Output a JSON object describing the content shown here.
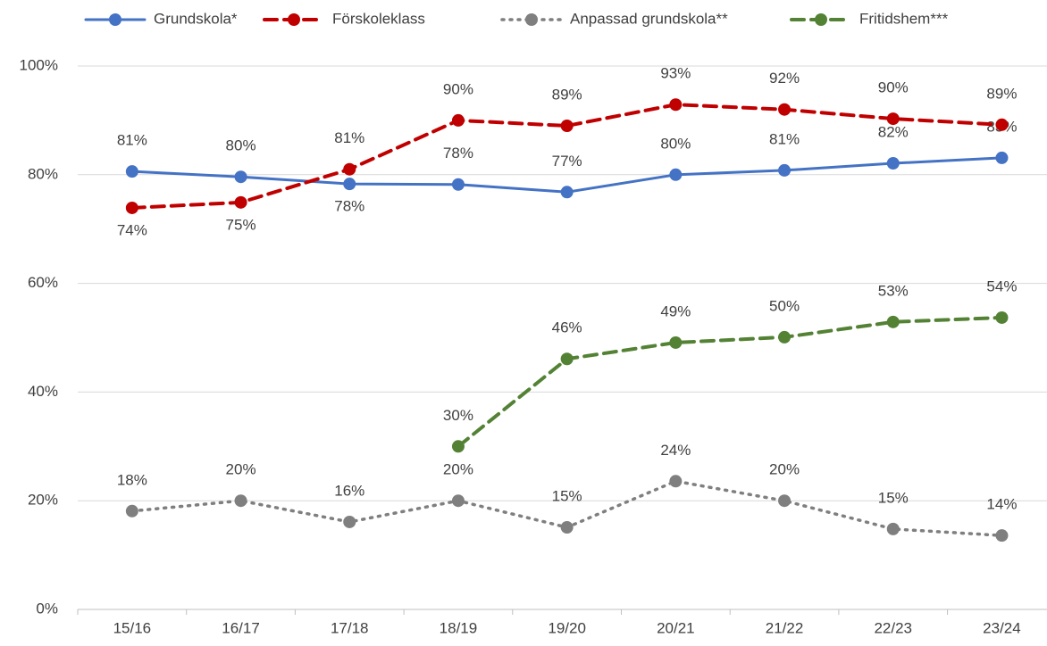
{
  "chart_data": {
    "type": "line",
    "categories": [
      "15/16",
      "16/17",
      "17/18",
      "18/19",
      "19/20",
      "20/21",
      "21/22",
      "22/23",
      "23/24"
    ],
    "series": [
      {
        "name": "Grundskola*",
        "color": "#4472c4",
        "dash": "solid",
        "values": [
          80.6,
          79.6,
          78.3,
          78.2,
          76.8,
          80.0,
          80.8,
          82.1,
          83.1
        ],
        "value_labels": [
          "81%",
          "80%",
          "78%",
          "78%",
          "77%",
          "80%",
          "81%",
          "82%",
          "83%"
        ]
      },
      {
        "name": "Förskoleklass",
        "color": "#c00000",
        "dash": "dashed",
        "values": [
          73.9,
          74.9,
          81.0,
          90.0,
          89.0,
          92.9,
          92.0,
          90.3,
          89.2
        ],
        "value_labels": [
          "74%",
          "75%",
          "81%",
          "90%",
          "89%",
          "93%",
          "92%",
          "90%",
          "89%"
        ]
      },
      {
        "name": "Anpassad grundskola**",
        "color": "#7f7f7f",
        "dash": "dotted",
        "values": [
          18.1,
          20.0,
          16.1,
          20.0,
          15.1,
          23.6,
          20.0,
          14.8,
          13.6
        ],
        "value_labels": [
          "18%",
          "20%",
          "16%",
          "20%",
          "15%",
          "24%",
          "20%",
          "15%",
          "14%"
        ]
      },
      {
        "name": "Fritidshem***",
        "color": "#548235",
        "dash": "dashed",
        "values": [
          null,
          null,
          null,
          30.0,
          46.1,
          49.1,
          50.1,
          52.9,
          53.7
        ],
        "value_labels": [
          null,
          null,
          null,
          "30%",
          "46%",
          "49%",
          "50%",
          "53%",
          "54%"
        ]
      }
    ],
    "ylim": [
      0,
      100
    ],
    "yticks": [
      {
        "value": 0,
        "label": "0%"
      },
      {
        "value": 20,
        "label": "20%"
      },
      {
        "value": 40,
        "label": "40%"
      },
      {
        "value": 60,
        "label": "60%"
      },
      {
        "value": 80,
        "label": "80%"
      },
      {
        "value": 100,
        "label": "100%"
      }
    ],
    "grid": true,
    "legend": "top"
  }
}
